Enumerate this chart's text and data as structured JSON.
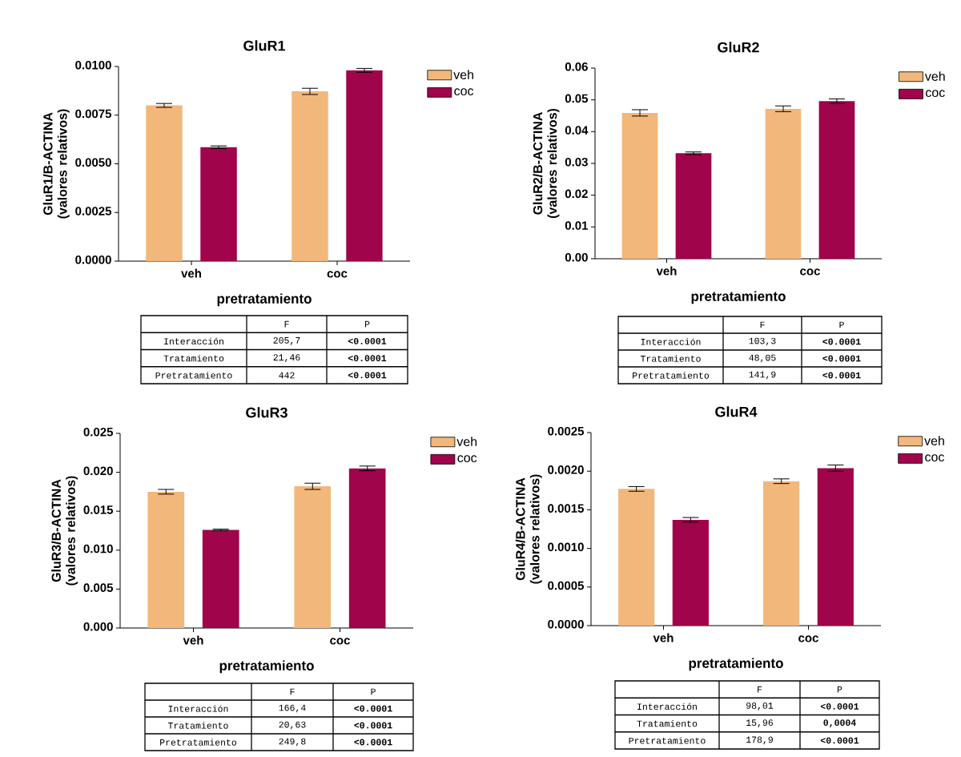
{
  "chart_data": [
    {
      "type": "bar",
      "title": "GluR1",
      "xlabel": "pretratamiento",
      "ylabel": "GluR1/B-ACTINA (valores relativos)",
      "categories": [
        "veh",
        "coc"
      ],
      "series": [
        {
          "name": "veh",
          "color": "#f2b77b",
          "values": [
            0.008,
            0.00872
          ],
          "errors": [
            0.0001,
            0.00016
          ]
        },
        {
          "name": "coc",
          "color": "#a0044a",
          "values": [
            0.00585,
            0.0098
          ],
          "errors": [
            7e-05,
            0.0001
          ]
        }
      ],
      "ylim": [
        0,
        0.01
      ],
      "yticks": [
        {
          "value": 0,
          "label": "0.0000"
        },
        {
          "value": 0.0025,
          "label": "0.0025"
        },
        {
          "value": 0.005,
          "label": "0.0050"
        },
        {
          "value": 0.0075,
          "label": "0.0075"
        },
        {
          "value": 0.01,
          "label": "0.0100"
        }
      ],
      "legend": "top right",
      "annotations": [
        "F",
        "P",
        "Interacción",
        "205,7",
        "<0.0001",
        "Tratamiento",
        "21,46",
        "<0.0001",
        "Pretratamiento",
        "442",
        "<0.0001"
      ]
    },
    {
      "type": "bar",
      "title": "GluR2",
      "xlabel": "pretratamiento",
      "ylabel": "GluR2/B-ACTINA (valores relativos)",
      "categories": [
        "veh",
        "coc"
      ],
      "series": [
        {
          "name": "veh",
          "color": "#f2b77b",
          "values": [
            0.0459,
            0.0472
          ],
          "errors": [
            0.001,
            0.0009
          ]
        },
        {
          "name": "coc",
          "color": "#a0044a",
          "values": [
            0.0332,
            0.0496
          ],
          "errors": [
            0.0004,
            0.0007
          ]
        }
      ],
      "ylim": [
        0,
        0.06
      ],
      "yticks": [
        {
          "value": 0,
          "label": "0.00"
        },
        {
          "value": 0.01,
          "label": "0.01"
        },
        {
          "value": 0.02,
          "label": "0.02"
        },
        {
          "value": 0.03,
          "label": "0.03"
        },
        {
          "value": 0.04,
          "label": "0.04"
        },
        {
          "value": 0.05,
          "label": "0.05"
        },
        {
          "value": 0.06,
          "label": "0.06"
        }
      ],
      "legend": "top right",
      "annotations": [
        "F",
        "P",
        "Interacción",
        "103,3",
        "<0.0001",
        "Tratamiento",
        "48,05",
        "<0.0001",
        "Pretratamiento",
        "141,9",
        "<0.0001"
      ]
    },
    {
      "type": "bar",
      "title": "GluR3",
      "xlabel": "pretratamiento",
      "ylabel": "GluR3/B-ACTINA (valores relativos)",
      "categories": [
        "veh",
        "coc"
      ],
      "series": [
        {
          "name": "veh",
          "color": "#f2b77b",
          "values": [
            0.0175,
            0.0182
          ],
          "errors": [
            0.0003,
            0.0004
          ]
        },
        {
          "name": "coc",
          "color": "#a0044a",
          "values": [
            0.0126,
            0.0205
          ],
          "errors": [
            0.0001,
            0.0003
          ]
        }
      ],
      "ylim": [
        0,
        0.025
      ],
      "yticks": [
        {
          "value": 0,
          "label": "0.000"
        },
        {
          "value": 0.005,
          "label": "0.005"
        },
        {
          "value": 0.01,
          "label": "0.010"
        },
        {
          "value": 0.015,
          "label": "0.015"
        },
        {
          "value": 0.02,
          "label": "0.020"
        },
        {
          "value": 0.025,
          "label": "0.025"
        }
      ],
      "legend": "top right",
      "annotations": [
        "F",
        "P",
        "Interacción",
        "166,4",
        "<0.0001",
        "Tratamiento",
        "20,63",
        "<0.0001",
        "Pretratamiento",
        "249,8",
        "<0.0001"
      ]
    },
    {
      "type": "bar",
      "title": "GluR4",
      "xlabel": "pretratamiento",
      "ylabel": "GluR4/B-ACTINA (valores relativos)",
      "categories": [
        "veh",
        "coc"
      ],
      "series": [
        {
          "name": "veh",
          "color": "#f2b77b",
          "values": [
            0.00177,
            0.00187
          ],
          "errors": [
            3e-05,
            3e-05
          ]
        },
        {
          "name": "coc",
          "color": "#a0044a",
          "values": [
            0.00137,
            0.00204
          ],
          "errors": [
            3e-05,
            4e-05
          ]
        }
      ],
      "ylim": [
        0,
        0.0025
      ],
      "yticks": [
        {
          "value": 0,
          "label": "0.0000"
        },
        {
          "value": 0.0005,
          "label": "0.0005"
        },
        {
          "value": 0.001,
          "label": "0.0010"
        },
        {
          "value": 0.0015,
          "label": "0.0015"
        },
        {
          "value": 0.002,
          "label": "0.0020"
        },
        {
          "value": 0.0025,
          "label": "0.0025"
        }
      ],
      "legend": "top right",
      "annotations": [
        "F",
        "P",
        "Interacción",
        "98,01",
        "<0.0001",
        "Tratamiento",
        "15,96",
        "0,0004",
        "Pretratamiento",
        "178,9",
        "<0.0001"
      ]
    }
  ]
}
